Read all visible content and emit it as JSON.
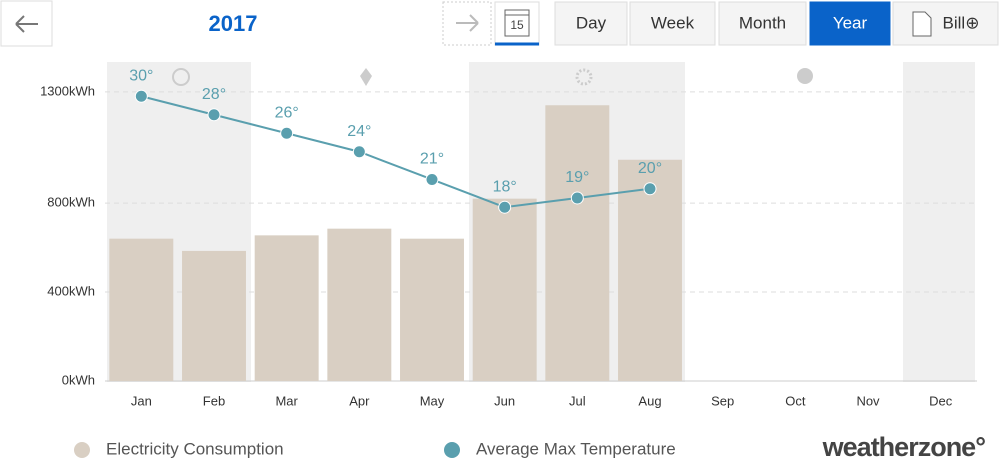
{
  "toolbar": {
    "year": "2017",
    "calendar_day": "15",
    "buttons": [
      "Day",
      "Week",
      "Month",
      "Year",
      "Bill⊕"
    ],
    "active": 3
  },
  "chart_data": {
    "type": "bar",
    "categories": [
      "Jan",
      "Feb",
      "Mar",
      "Apr",
      "May",
      "Jun",
      "Jul",
      "Aug",
      "Sep",
      "Oct",
      "Nov",
      "Dec"
    ],
    "series": [
      {
        "name": "Electricity Consumption",
        "type": "bar",
        "color": "#d9cfc3",
        "values": [
          640,
          585,
          655,
          685,
          640,
          820,
          1240,
          995,
          null,
          null,
          null,
          null
        ]
      },
      {
        "name": "Average Max Temperature",
        "type": "line",
        "axis": "y2",
        "color": "#5a9fae",
        "values": [
          30,
          28,
          26,
          24,
          21,
          18,
          19,
          20,
          null,
          null,
          null,
          null
        ],
        "value_labels": [
          "30°",
          "28°",
          "26°",
          "24°",
          "21°",
          "18°",
          "19°",
          "20°",
          null,
          null,
          null,
          null
        ]
      }
    ],
    "ylim": [
      0,
      1430
    ],
    "yticks": [
      {
        "value": 0,
        "label": "0kWh"
      },
      {
        "value": 400,
        "label": "400kWh"
      },
      {
        "value": 800,
        "label": "800kWh"
      },
      {
        "value": 1300,
        "label": "1300kWh"
      }
    ],
    "y2lim": [
      -0.8,
      33.6
    ],
    "grid": true,
    "brand": "weatherzone°"
  }
}
